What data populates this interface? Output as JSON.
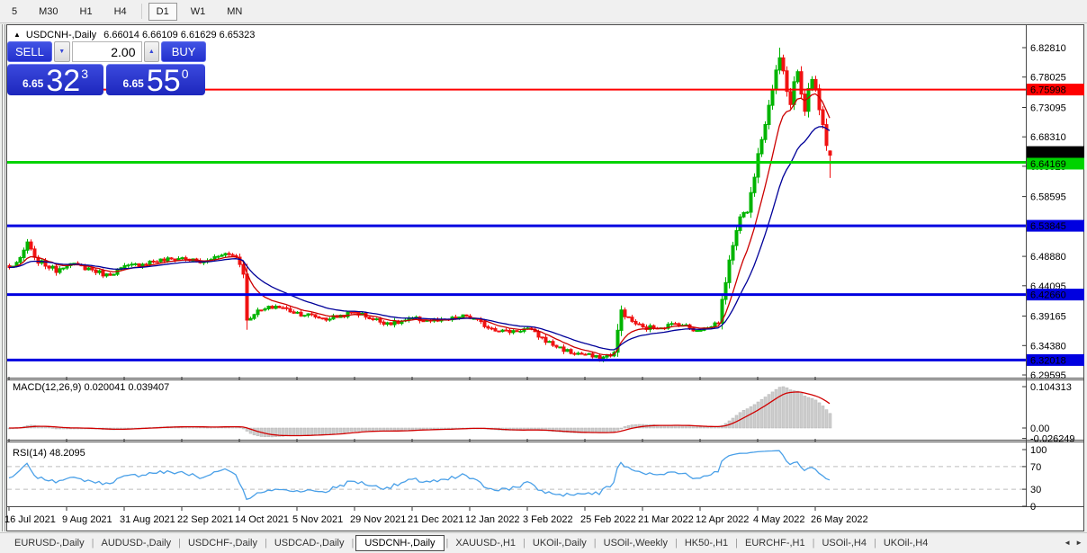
{
  "colors": {
    "up": "#00b400",
    "down": "#f01212",
    "ma_fast": "#cc0000",
    "ma_slow": "#000099",
    "hline_red": "#ff0000",
    "hline_green": "#00d300",
    "hline_blue": "#0000e0",
    "current_label_bg": "#000000",
    "rsi_line": "#4aa0e8",
    "rsi_level_dash": "#bdbdbd",
    "macd_hist": "#cdcdcd",
    "macd_hist_edge": "#b5b5b5",
    "macd_signal": "#d00000",
    "frame": "#4a4a4a",
    "tick": "#333333"
  },
  "toolbar": {
    "timeframes": [
      {
        "label": "5",
        "active": false
      },
      {
        "label": "M30",
        "active": false
      },
      {
        "label": "H1",
        "active": false
      },
      {
        "label": "H4",
        "active": false
      },
      {
        "label": "D1",
        "active": true
      },
      {
        "label": "W1",
        "active": false
      },
      {
        "label": "MN",
        "active": false
      }
    ]
  },
  "window": {
    "title_arrow": "▲",
    "title": "USDCNH-,Daily",
    "ohlc_text": "6.66014 6.66109 6.61629 6.65323"
  },
  "trade_panel": {
    "sell_label": "SELL",
    "buy_label": "BUY",
    "volume": "2.00",
    "spin_down": "▼",
    "spin_up": "▲",
    "sell_price": {
      "prefix": "6.65",
      "big": "32",
      "sup": "3"
    },
    "buy_price": {
      "prefix": "6.65",
      "big": "55",
      "sup": "0"
    }
  },
  "chart_data": {
    "type": "candlestick",
    "symbol": "USDCNH-",
    "period": "Daily",
    "last_ohlc": {
      "open": 6.66014,
      "high": 6.66109,
      "low": 6.61629,
      "close": 6.65323
    },
    "price_axis": {
      "min": 6.29595,
      "max": 6.8281,
      "ticks": [
        "6.82810",
        "6.78025",
        "6.73095",
        "6.68310",
        "6.63525",
        "6.58595",
        "6.48880",
        "6.44095",
        "6.39165",
        "6.34380",
        "6.29595"
      ]
    },
    "levels": {
      "resistance_red": {
        "value": 6.75998,
        "text": "6.75998"
      },
      "current_black": {
        "value": 6.65323,
        "text": "6.65323"
      },
      "alert_green": {
        "value": 6.64169,
        "text": "6.64169"
      },
      "support_blue": [
        {
          "value": 6.53845,
          "text": "6.53845"
        },
        {
          "value": 6.4266,
          "text": "6.42660"
        },
        {
          "value": 6.32018,
          "text": "6.32018"
        }
      ]
    },
    "candles_count": 229,
    "close_waypoints": [
      [
        0,
        6.47
      ],
      [
        3,
        6.483
      ],
      [
        5,
        6.512
      ],
      [
        7,
        6.484
      ],
      [
        13,
        6.466
      ],
      [
        16,
        6.477
      ],
      [
        22,
        6.469
      ],
      [
        27,
        6.458
      ],
      [
        32,
        6.471
      ],
      [
        40,
        6.481
      ],
      [
        48,
        6.486
      ],
      [
        54,
        6.478
      ],
      [
        59,
        6.494
      ],
      [
        63,
        6.489
      ],
      [
        65,
        6.463
      ],
      [
        66,
        6.383
      ],
      [
        68,
        6.397
      ],
      [
        74,
        6.408
      ],
      [
        80,
        6.397
      ],
      [
        88,
        6.387
      ],
      [
        96,
        6.398
      ],
      [
        103,
        6.383
      ],
      [
        107,
        6.38
      ],
      [
        112,
        6.387
      ],
      [
        120,
        6.383
      ],
      [
        127,
        6.392
      ],
      [
        133,
        6.374
      ],
      [
        138,
        6.366
      ],
      [
        144,
        6.371
      ],
      [
        150,
        6.348
      ],
      [
        156,
        6.332
      ],
      [
        160,
        6.329
      ],
      [
        164,
        6.322
      ],
      [
        168,
        6.332
      ],
      [
        170,
        6.401
      ],
      [
        172,
        6.387
      ],
      [
        176,
        6.372
      ],
      [
        182,
        6.375
      ],
      [
        186,
        6.38
      ],
      [
        190,
        6.37
      ],
      [
        194,
        6.372
      ],
      [
        197,
        6.383
      ],
      [
        199,
        6.449
      ],
      [
        201,
        6.509
      ],
      [
        203,
        6.556
      ],
      [
        205,
        6.561
      ],
      [
        207,
        6.621
      ],
      [
        208,
        6.659
      ],
      [
        210,
        6.706
      ],
      [
        212,
        6.763
      ],
      [
        214,
        6.813
      ],
      [
        215,
        6.793
      ],
      [
        216,
        6.759
      ],
      [
        217,
        6.737
      ],
      [
        218,
        6.773
      ],
      [
        219,
        6.789
      ],
      [
        220,
        6.749
      ],
      [
        221,
        6.723
      ],
      [
        222,
        6.761
      ],
      [
        223,
        6.779
      ],
      [
        224,
        6.763
      ],
      [
        225,
        6.725
      ],
      [
        226,
        6.701
      ],
      [
        227,
        6.669
      ],
      [
        228,
        6.65323
      ]
    ],
    "ma": {
      "fast_period": 10,
      "slow_period": 22
    },
    "macd": {
      "label": "MACD(12,26,9)",
      "values_text": "0.020041 0.039407",
      "fast": 12,
      "slow": 26,
      "signal": 9,
      "axis": {
        "max": 0.104313,
        "min": -0.026249,
        "ticks": [
          {
            "text": "0.104313",
            "v": 0.104313
          },
          {
            "text": "0.00",
            "v": 0
          },
          {
            "text": "-0.026249",
            "v": -0.026249
          }
        ]
      }
    },
    "rsi": {
      "label": "RSI(14)",
      "value_text": "48.2095",
      "period": 14,
      "axis": {
        "ticks": [
          {
            "text": "100",
            "v": 100
          },
          {
            "text": "70",
            "v": 70
          },
          {
            "text": "30",
            "v": 30
          },
          {
            "text": "0",
            "v": 0
          }
        ],
        "levels": [
          70,
          30
        ]
      }
    },
    "date_axis": [
      "16 Jul 2021",
      "9 Aug 2021",
      "31 Aug 2021",
      "22 Sep 2021",
      "14 Oct 2021",
      "5 Nov 2021",
      "29 Nov 2021",
      "21 Dec 2021",
      "12 Jan 2022",
      "3 Feb 2022",
      "25 Feb 2022",
      "21 Mar 2022",
      "12 Apr 2022",
      "4 May 2022",
      "26 May 2022"
    ]
  },
  "tabbar": {
    "tabs": [
      {
        "label": "EURUSD-,Daily",
        "active": false
      },
      {
        "label": "AUDUSD-,Daily",
        "active": false
      },
      {
        "label": "USDCHF-,Daily",
        "active": false
      },
      {
        "label": "USDCAD-,Daily",
        "active": false
      },
      {
        "label": "USDCNH-,Daily",
        "active": true
      },
      {
        "label": "XAUUSD-,H1",
        "active": false
      },
      {
        "label": "UKOil-,Daily",
        "active": false
      },
      {
        "label": "USOil-,Weekly",
        "active": false
      },
      {
        "label": "HK50-,H1",
        "active": false
      },
      {
        "label": "EURCHF-,H1",
        "active": false
      },
      {
        "label": "USOil-,H4",
        "active": false
      },
      {
        "label": "UKOil-,H4",
        "active": false
      }
    ],
    "scroll_left": "◄",
    "scroll_right": "►"
  }
}
